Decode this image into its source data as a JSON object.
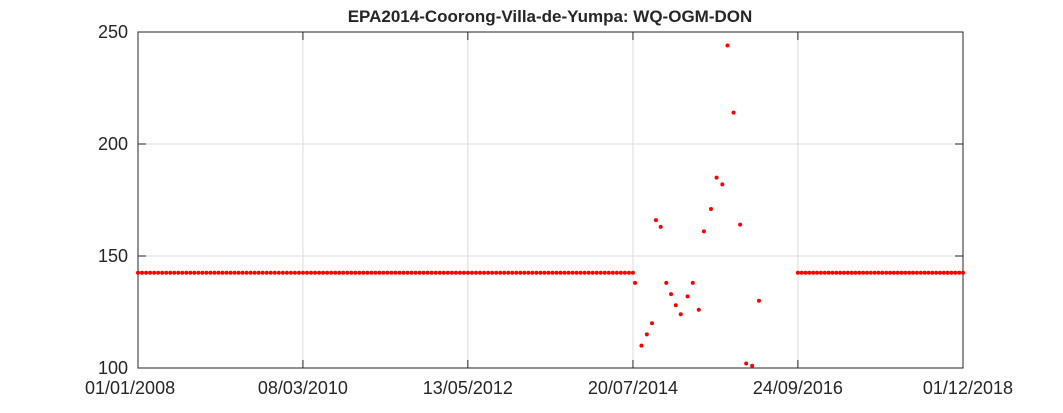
{
  "chart_data": {
    "type": "scatter",
    "title": "EPA2014-Coorong-Villa-de-Yumpa: WQ-OGM-DON",
    "xlabel": "",
    "ylabel": "",
    "x_axis": "date",
    "xlim": [
      "2008-01-01",
      "2018-12-01"
    ],
    "ylim": [
      100,
      250
    ],
    "xticks": [
      "01/01/2008",
      "08/03/2010",
      "13/05/2012",
      "20/07/2014",
      "24/09/2016",
      "01/12/2018"
    ],
    "yticks": [
      100,
      150,
      200,
      250
    ],
    "grid": true,
    "marker_color": "#ff0000",
    "series": [
      {
        "constant_segments": [
          {
            "from": "2008-01-01",
            "to": "2014-07-20",
            "value": 142.5,
            "count": 124
          },
          {
            "from": "2016-09-24",
            "to": "2018-12-01",
            "value": 142.5,
            "count": 44
          }
        ],
        "points": [
          {
            "x": "2014-07-30",
            "y": 138
          },
          {
            "x": "2014-08-30",
            "y": 110
          },
          {
            "x": "2014-09-25",
            "y": 115
          },
          {
            "x": "2014-10-20",
            "y": 120
          },
          {
            "x": "2014-11-08",
            "y": 166
          },
          {
            "x": "2014-12-01",
            "y": 163
          },
          {
            "x": "2014-12-28",
            "y": 138
          },
          {
            "x": "2015-01-20",
            "y": 133
          },
          {
            "x": "2015-02-12",
            "y": 128
          },
          {
            "x": "2015-03-08",
            "y": 124
          },
          {
            "x": "2015-04-10",
            "y": 132
          },
          {
            "x": "2015-05-05",
            "y": 138
          },
          {
            "x": "2015-06-03",
            "y": 126
          },
          {
            "x": "2015-06-28",
            "y": 161
          },
          {
            "x": "2015-08-01",
            "y": 171
          },
          {
            "x": "2015-08-28",
            "y": 185
          },
          {
            "x": "2015-09-25",
            "y": 182
          },
          {
            "x": "2015-10-20",
            "y": 244
          },
          {
            "x": "2015-11-18",
            "y": 214
          },
          {
            "x": "2015-12-20",
            "y": 164
          },
          {
            "x": "2016-01-18",
            "y": 102
          },
          {
            "x": "2016-02-16",
            "y": 101
          },
          {
            "x": "2016-03-20",
            "y": 130
          }
        ]
      }
    ]
  }
}
